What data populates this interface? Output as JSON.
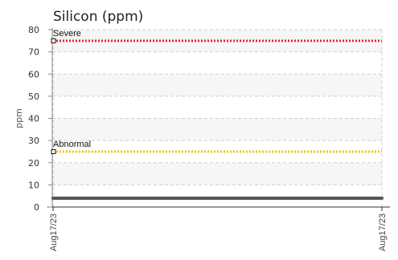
{
  "chart_data": {
    "type": "line",
    "title": "Silicon (ppm)",
    "ylabel": "ppm",
    "xlabel": "",
    "ylim": [
      0,
      80
    ],
    "yticks": [
      0,
      10,
      20,
      30,
      40,
      50,
      60,
      70,
      80
    ],
    "x_tick_labels": [
      "Aug17/23",
      "Aug17/23"
    ],
    "grid": true,
    "series": [
      {
        "values": [
          4,
          4
        ],
        "color": "#555555"
      }
    ],
    "thresholds": [
      {
        "label": "Severe",
        "value": 75,
        "color": "#e8272a"
      },
      {
        "label": "Abnormal",
        "value": 25,
        "color": "#f2c318"
      }
    ]
  }
}
